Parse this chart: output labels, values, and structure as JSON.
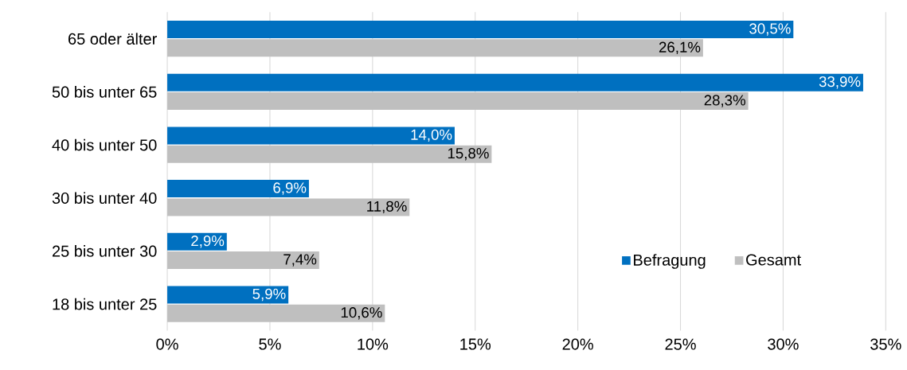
{
  "chart_data": {
    "type": "bar",
    "orientation": "horizontal",
    "categories": [
      "65 oder älter",
      "50 bis unter 65",
      "40 bis unter 50",
      "30 bis unter 40",
      "25 bis unter 30",
      "18 bis unter 25"
    ],
    "series": [
      {
        "name": "Befragung",
        "color": "#0070c0",
        "values": [
          30.5,
          33.9,
          14.0,
          6.9,
          2.9,
          5.9
        ],
        "value_labels": [
          "30,5%",
          "33,9%",
          "14,0%",
          "6,9%",
          "2,9%",
          "5,9%"
        ]
      },
      {
        "name": "Gesamt",
        "color": "#bfbfbf",
        "values": [
          26.1,
          28.3,
          15.8,
          11.8,
          7.4,
          10.6
        ],
        "value_labels": [
          "26,1%",
          "28,3%",
          "15,8%",
          "11,8%",
          "7,4%",
          "10,6%"
        ]
      }
    ],
    "xlim": [
      0,
      35
    ],
    "xticks": [
      {
        "value": 0,
        "label": "0%"
      },
      {
        "value": 5,
        "label": "5%"
      },
      {
        "value": 10,
        "label": "10%"
      },
      {
        "value": 15,
        "label": "15%"
      },
      {
        "value": 20,
        "label": "20%"
      },
      {
        "value": 25,
        "label": "25%"
      },
      {
        "value": 30,
        "label": "30%"
      },
      {
        "value": 35,
        "label": "35%"
      }
    ],
    "grid": "x",
    "legend": "bottom right"
  }
}
